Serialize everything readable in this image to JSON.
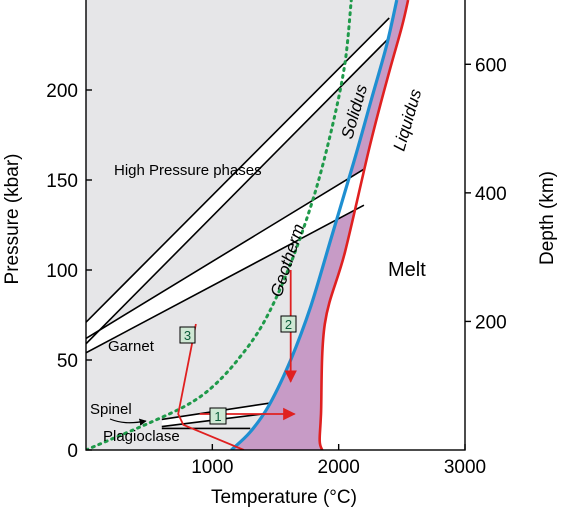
{
  "chart_data": {
    "type": "line",
    "xlabel": "Temperature (°C)",
    "ylabel": "Pressure (kbar)",
    "y2label": "Depth (km)",
    "xlim": [
      0,
      3000
    ],
    "ylim": [
      0,
      250
    ],
    "y2lim": [
      0,
      700
    ],
    "x_ticks": [
      1000,
      2000,
      3000
    ],
    "y_ticks": [
      0,
      50,
      100,
      150,
      200
    ],
    "y2_ticks": [
      200,
      400,
      600
    ],
    "grid": false,
    "colors": {
      "subsolidus": "#e6e6e8",
      "melting_interval": "#c79bc6",
      "solidus": "#1f8fd1",
      "liquidus": "#e02020",
      "geotherm": "#1f9a4a",
      "phase_boundary": "#000000",
      "path_arrows": "#e02020",
      "box_fill": "#cfe8d4"
    },
    "series": [
      {
        "name": "Solidus",
        "points": [
          [
            1150,
            0
          ],
          [
            1300,
            10
          ],
          [
            1450,
            25
          ],
          [
            1620,
            50
          ],
          [
            1780,
            80
          ],
          [
            1950,
            120
          ],
          [
            2120,
            160
          ],
          [
            2260,
            195
          ],
          [
            2380,
            225
          ],
          [
            2460,
            250
          ]
        ]
      },
      {
        "name": "Liquidus",
        "points": [
          [
            1870,
            0
          ],
          [
            1850,
            5
          ],
          [
            1860,
            20
          ],
          [
            1890,
            70
          ],
          [
            2050,
            110
          ],
          [
            2250,
            170
          ],
          [
            2400,
            210
          ],
          [
            2500,
            235
          ],
          [
            2550,
            250
          ]
        ]
      },
      {
        "name": "Geotherm",
        "points": [
          [
            0,
            0
          ],
          [
            200,
            6
          ],
          [
            500,
            15
          ],
          [
            800,
            25
          ],
          [
            1000,
            35
          ],
          [
            1200,
            50
          ],
          [
            1400,
            70
          ],
          [
            1600,
            100
          ],
          [
            1800,
            140
          ],
          [
            1950,
            180
          ],
          [
            2050,
            215
          ],
          [
            2100,
            250
          ]
        ]
      }
    ],
    "phase_boundaries": [
      {
        "from": [
          0,
          71
        ],
        "to": [
          2400,
          240
        ]
      },
      {
        "from": [
          0,
          59
        ],
        "to": [
          2400,
          229
        ]
      },
      {
        "from": [
          0,
          62
        ],
        "to": [
          2200,
          156
        ]
      },
      {
        "from": [
          0,
          54
        ],
        "to": [
          2200,
          136
        ]
      },
      {
        "from": [
          600,
          17
        ],
        "to": [
          1450,
          26
        ]
      },
      {
        "from": [
          600,
          13
        ],
        "to": [
          1400,
          20
        ]
      },
      {
        "from": [
          600,
          12
        ],
        "to": [
          1300,
          12
        ]
      }
    ],
    "regions": [
      "High Pressure phases",
      "Garnet",
      "Spinel",
      "Plagioclase",
      "Melt"
    ],
    "curve_labels": [
      "Geotherm",
      "Solidus",
      "Liquidus"
    ],
    "paths": [
      {
        "label": "1",
        "description": "isobaric heating",
        "points": [
          [
            900,
            20
          ],
          [
            1650,
            20
          ]
        ]
      },
      {
        "label": "2",
        "description": "decompression",
        "points": [
          [
            1620,
            100
          ],
          [
            1620,
            38
          ]
        ]
      },
      {
        "label": "3",
        "description": "adiabatic-type path",
        "points": [
          [
            870,
            70
          ],
          [
            730,
            20
          ],
          [
            770,
            14
          ],
          [
            1250,
            0
          ]
        ]
      }
    ]
  }
}
